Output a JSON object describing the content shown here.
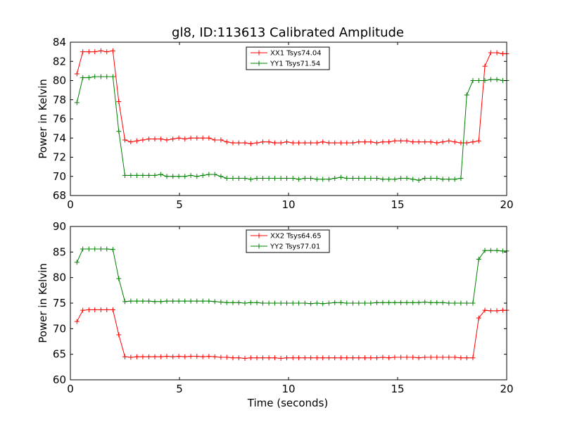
{
  "chart_data": [
    {
      "type": "line",
      "title": "gl8, ID:113613 Calibrated Amplitude",
      "xlabel": "",
      "ylabel": "Power in Kelvin",
      "xlim": [
        0,
        20
      ],
      "ylim": [
        68,
        84
      ],
      "xticks": [
        "0",
        "5",
        "10",
        "15",
        "20"
      ],
      "yticks": [
        "68",
        "70",
        "72",
        "74",
        "76",
        "78",
        "80",
        "82",
        "84"
      ],
      "legend_position": "top-center",
      "grid": false,
      "x": [
        0.3,
        0.57,
        0.85,
        1.12,
        1.4,
        1.67,
        1.95,
        2.22,
        2.5,
        2.77,
        3.05,
        3.32,
        3.6,
        3.87,
        4.15,
        4.42,
        4.7,
        4.97,
        5.25,
        5.52,
        5.8,
        6.07,
        6.35,
        6.62,
        6.9,
        7.17,
        7.45,
        7.72,
        8.0,
        8.27,
        8.55,
        8.82,
        9.1,
        9.37,
        9.65,
        9.92,
        10.2,
        10.47,
        10.75,
        11.02,
        11.3,
        11.57,
        11.85,
        12.12,
        12.4,
        12.67,
        12.95,
        13.22,
        13.5,
        13.77,
        14.05,
        14.32,
        14.6,
        14.87,
        15.15,
        15.42,
        15.7,
        15.97,
        16.25,
        16.52,
        16.8,
        17.07,
        17.35,
        17.62,
        17.9,
        18.17,
        18.45,
        18.72,
        19.0,
        19.27,
        19.55,
        19.82,
        20.0
      ],
      "series": [
        {
          "name": "XX1 Tsys74.04",
          "color": "#ff0000",
          "values": [
            80.7,
            83.0,
            83.0,
            83.0,
            83.1,
            83.0,
            83.1,
            77.8,
            73.8,
            73.6,
            73.7,
            73.8,
            73.9,
            73.9,
            73.9,
            73.8,
            73.9,
            74.0,
            73.9,
            74.0,
            74.0,
            74.0,
            74.0,
            73.8,
            73.8,
            73.6,
            73.5,
            73.5,
            73.5,
            73.4,
            73.5,
            73.6,
            73.6,
            73.5,
            73.5,
            73.6,
            73.5,
            73.5,
            73.5,
            73.5,
            73.5,
            73.6,
            73.5,
            73.5,
            73.5,
            73.5,
            73.5,
            73.6,
            73.6,
            73.6,
            73.5,
            73.6,
            73.6,
            73.7,
            73.7,
            73.7,
            73.6,
            73.6,
            73.6,
            73.6,
            73.5,
            73.6,
            73.7,
            73.6,
            73.5,
            73.5,
            73.6,
            73.7,
            81.5,
            82.9,
            82.9,
            82.8,
            82.8
          ]
        },
        {
          "name": "YY1 Tsys71.54",
          "color": "#008000",
          "values": [
            77.7,
            80.3,
            80.3,
            80.4,
            80.4,
            80.4,
            80.4,
            74.7,
            70.1,
            70.1,
            70.1,
            70.1,
            70.1,
            70.1,
            70.2,
            70.0,
            70.0,
            70.0,
            70.0,
            70.1,
            70.0,
            70.1,
            70.2,
            70.2,
            70.0,
            69.8,
            69.8,
            69.8,
            69.8,
            69.7,
            69.8,
            69.8,
            69.8,
            69.8,
            69.8,
            69.8,
            69.8,
            69.7,
            69.8,
            69.8,
            69.7,
            69.7,
            69.7,
            69.8,
            69.9,
            69.8,
            69.8,
            69.8,
            69.8,
            69.8,
            69.8,
            69.7,
            69.7,
            69.7,
            69.8,
            69.8,
            69.7,
            69.6,
            69.8,
            69.8,
            69.8,
            69.7,
            69.7,
            69.7,
            69.8,
            78.5,
            80.0,
            80.0,
            80.0,
            80.1,
            80.1,
            80.0,
            80.0
          ]
        }
      ]
    },
    {
      "type": "line",
      "title": "",
      "xlabel": "Time (seconds)",
      "ylabel": "Power in Kelvin",
      "xlim": [
        0,
        20
      ],
      "ylim": [
        60,
        90
      ],
      "xticks": [
        "0",
        "5",
        "10",
        "15",
        "20"
      ],
      "yticks": [
        "60",
        "65",
        "70",
        "75",
        "80",
        "85",
        "90"
      ],
      "legend_position": "top-center",
      "grid": false,
      "x": [
        0.3,
        0.57,
        0.85,
        1.12,
        1.4,
        1.67,
        1.95,
        2.22,
        2.5,
        2.77,
        3.05,
        3.32,
        3.6,
        3.87,
        4.15,
        4.42,
        4.7,
        4.97,
        5.25,
        5.52,
        5.8,
        6.07,
        6.35,
        6.62,
        6.9,
        7.17,
        7.45,
        7.72,
        8.0,
        8.27,
        8.55,
        8.82,
        9.1,
        9.37,
        9.65,
        9.92,
        10.2,
        10.47,
        10.75,
        11.02,
        11.3,
        11.57,
        11.85,
        12.12,
        12.4,
        12.67,
        12.95,
        13.22,
        13.5,
        13.77,
        14.05,
        14.32,
        14.6,
        14.87,
        15.15,
        15.42,
        15.7,
        15.97,
        16.25,
        16.52,
        16.8,
        17.07,
        17.35,
        17.62,
        17.9,
        18.17,
        18.45,
        18.72,
        19.0,
        19.27,
        19.55,
        19.82,
        20.0
      ],
      "series": [
        {
          "name": "XX2 Tsys64.65",
          "color": "#ff0000",
          "values": [
            71.4,
            73.6,
            73.7,
            73.7,
            73.7,
            73.7,
            73.7,
            68.8,
            64.5,
            64.4,
            64.5,
            64.5,
            64.5,
            64.5,
            64.5,
            64.6,
            64.5,
            64.6,
            64.5,
            64.6,
            64.6,
            64.5,
            64.6,
            64.5,
            64.4,
            64.4,
            64.3,
            64.3,
            64.2,
            64.3,
            64.3,
            64.3,
            64.3,
            64.3,
            64.2,
            64.3,
            64.3,
            64.3,
            64.3,
            64.3,
            64.3,
            64.3,
            64.3,
            64.3,
            64.3,
            64.3,
            64.3,
            64.3,
            64.3,
            64.3,
            64.3,
            64.4,
            64.3,
            64.4,
            64.4,
            64.4,
            64.4,
            64.3,
            64.4,
            64.4,
            64.4,
            64.4,
            64.4,
            64.4,
            64.3,
            64.3,
            64.3,
            72.1,
            73.6,
            73.5,
            73.5,
            73.6,
            73.6
          ]
        },
        {
          "name": "YY2 Tsys77.01",
          "color": "#008000",
          "values": [
            83.0,
            85.6,
            85.6,
            85.6,
            85.6,
            85.6,
            85.5,
            79.8,
            75.3,
            75.4,
            75.4,
            75.4,
            75.4,
            75.3,
            75.3,
            75.4,
            75.4,
            75.4,
            75.4,
            75.4,
            75.4,
            75.4,
            75.4,
            75.3,
            75.2,
            75.1,
            75.1,
            75.1,
            75.0,
            75.1,
            75.1,
            75.0,
            75.0,
            75.0,
            75.0,
            75.0,
            75.0,
            75.0,
            75.0,
            74.9,
            75.0,
            74.9,
            75.0,
            75.1,
            75.1,
            75.0,
            75.0,
            75.0,
            75.0,
            75.0,
            75.1,
            75.1,
            75.1,
            75.1,
            75.1,
            75.1,
            75.1,
            75.1,
            75.2,
            75.1,
            75.1,
            75.1,
            75.0,
            75.0,
            75.0,
            75.0,
            75.0,
            83.6,
            85.3,
            85.3,
            85.3,
            85.2,
            85.2
          ]
        }
      ]
    }
  ]
}
